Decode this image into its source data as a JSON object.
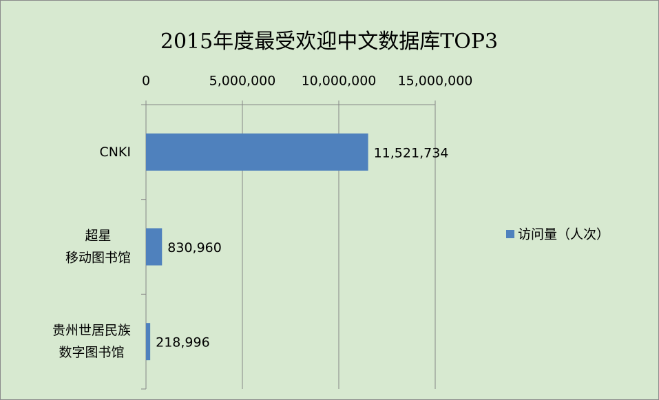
{
  "chart_data": {
    "type": "bar",
    "orientation": "horizontal",
    "title": "2015年度最受欢迎中文数据库TOP3",
    "categories": [
      "CNKI",
      "超星\n移动图书馆",
      "贵州世居民族\n数字图书馆"
    ],
    "series": [
      {
        "name": "访问量（人次）",
        "color": "#4f81bd",
        "values": [
          11521734,
          830960,
          218996
        ],
        "value_labels": [
          "11,521,734",
          "830,960",
          "218,996"
        ]
      }
    ],
    "xlim": [
      0,
      15000000
    ],
    "xticks": [
      0,
      {
        "value": 5000000,
        "label": "5,000,000"
      },
      {
        "value": 10000000,
        "label": "10,000,000"
      },
      {
        "value": 15000000,
        "label": "15,000,000"
      }
    ],
    "grid": true,
    "legend": "right"
  }
}
